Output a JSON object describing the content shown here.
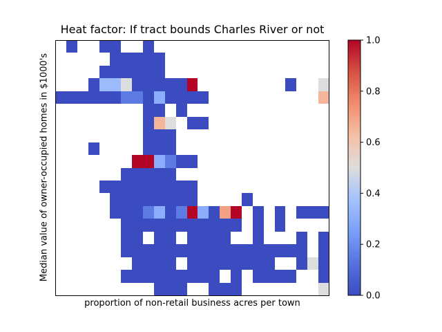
{
  "chart_data": {
    "type": "heatmap",
    "title": "Heat factor: If tract bounds Charles River or not",
    "xlabel": "proportion of non-retail business acres per town",
    "ylabel": "Median value of owner-occupied homes in $1000's",
    "x_ticks": [],
    "y_ticks": [],
    "colormap": "coolwarm",
    "color_low": "#3b4cc0",
    "color_mid": "#dddddd",
    "color_high": "#b40426",
    "clim": [
      0,
      1
    ],
    "colorbar_ticks": [
      "0.0",
      "0.2",
      "0.4",
      "0.6",
      "0.8",
      "1.0"
    ],
    "n_cols": 25,
    "n_rows": 20,
    "row_order": "top-to-bottom",
    "cells": [
      [
        [
          1,
          0
        ],
        [
          4,
          0
        ],
        [
          5,
          0
        ],
        [
          8,
          0
        ]
      ],
      [
        [
          5,
          0
        ],
        [
          6,
          0
        ],
        [
          7,
          0
        ],
        [
          8,
          0
        ],
        [
          9,
          0
        ]
      ],
      [
        [
          4,
          0
        ],
        [
          5,
          0
        ],
        [
          6,
          0
        ],
        [
          7,
          0
        ],
        [
          8,
          0
        ],
        [
          9,
          0
        ]
      ],
      [
        [
          3,
          0
        ],
        [
          4,
          0.35
        ],
        [
          5,
          0.35
        ],
        [
          6,
          0.5
        ],
        [
          7,
          0
        ],
        [
          8,
          0
        ],
        [
          9,
          0
        ],
        [
          10,
          0
        ],
        [
          11,
          0
        ],
        [
          12,
          1
        ],
        [
          21,
          0
        ],
        [
          24,
          0.5
        ]
      ],
      [
        [
          0,
          0
        ],
        [
          1,
          0
        ],
        [
          2,
          0
        ],
        [
          3,
          0
        ],
        [
          4,
          0
        ],
        [
          5,
          0
        ],
        [
          6,
          0.15
        ],
        [
          7,
          0.15
        ],
        [
          8,
          0
        ],
        [
          9,
          0.3
        ],
        [
          10,
          0
        ],
        [
          11,
          0
        ],
        [
          12,
          0
        ],
        [
          13,
          0
        ],
        [
          24,
          0.65
        ]
      ],
      [
        [
          8,
          0
        ],
        [
          9,
          0
        ],
        [
          11,
          0
        ]
      ],
      [
        [
          8,
          0
        ],
        [
          9,
          0.65
        ],
        [
          10,
          0.5
        ],
        [
          12,
          0
        ],
        [
          13,
          0
        ]
      ],
      [
        [
          8,
          0
        ],
        [
          9,
          0
        ],
        [
          10,
          0
        ]
      ],
      [
        [
          3,
          0
        ],
        [
          8,
          0
        ],
        [
          9,
          0
        ],
        [
          10,
          0
        ]
      ],
      [
        [
          7,
          1
        ],
        [
          8,
          1
        ],
        [
          9,
          0.3
        ],
        [
          10,
          0.15
        ],
        [
          11,
          0
        ],
        [
          12,
          0
        ]
      ],
      [
        [
          6,
          0
        ],
        [
          7,
          0
        ],
        [
          8,
          0
        ],
        [
          9,
          0
        ],
        [
          10,
          0
        ]
      ],
      [
        [
          4,
          0
        ],
        [
          5,
          0
        ],
        [
          6,
          0
        ],
        [
          7,
          0
        ],
        [
          8,
          0
        ],
        [
          9,
          0
        ],
        [
          10,
          0
        ],
        [
          11,
          0
        ],
        [
          12,
          0
        ]
      ],
      [
        [
          5,
          0
        ],
        [
          6,
          0
        ],
        [
          7,
          0
        ],
        [
          8,
          0
        ],
        [
          9,
          0
        ],
        [
          10,
          0
        ],
        [
          11,
          0
        ],
        [
          12,
          0
        ],
        [
          17,
          0
        ]
      ],
      [
        [
          5,
          0
        ],
        [
          6,
          0
        ],
        [
          7,
          0
        ],
        [
          8,
          0.15
        ],
        [
          9,
          0.3
        ],
        [
          10,
          0
        ],
        [
          11,
          0.15
        ],
        [
          12,
          1
        ],
        [
          13,
          0.3
        ],
        [
          14,
          0
        ],
        [
          15,
          0.7
        ],
        [
          16,
          1
        ],
        [
          18,
          0
        ],
        [
          20,
          0
        ],
        [
          22,
          0
        ],
        [
          23,
          0
        ],
        [
          24,
          0
        ]
      ],
      [
        [
          6,
          0
        ],
        [
          7,
          0
        ],
        [
          8,
          0
        ],
        [
          9,
          0
        ],
        [
          10,
          0
        ],
        [
          11,
          0
        ],
        [
          12,
          0
        ],
        [
          13,
          0
        ],
        [
          14,
          0
        ],
        [
          15,
          0
        ],
        [
          16,
          0
        ],
        [
          18,
          0
        ],
        [
          20,
          0
        ]
      ],
      [
        [
          6,
          0
        ],
        [
          7,
          0
        ],
        [
          9,
          0
        ],
        [
          10,
          0
        ],
        [
          12,
          0
        ],
        [
          13,
          0
        ],
        [
          14,
          0
        ],
        [
          15,
          0
        ],
        [
          18,
          0
        ],
        [
          22,
          0
        ],
        [
          24,
          0
        ]
      ],
      [
        [
          6,
          0
        ],
        [
          7,
          0
        ],
        [
          8,
          0
        ],
        [
          9,
          0
        ],
        [
          10,
          0
        ],
        [
          11,
          0
        ],
        [
          12,
          0
        ],
        [
          13,
          0
        ],
        [
          14,
          0
        ],
        [
          15,
          0
        ],
        [
          16,
          0
        ],
        [
          17,
          0
        ],
        [
          18,
          0
        ],
        [
          19,
          0
        ],
        [
          20,
          0
        ],
        [
          21,
          0
        ],
        [
          22,
          0
        ],
        [
          24,
          0
        ]
      ],
      [
        [
          7,
          0
        ],
        [
          8,
          0
        ],
        [
          9,
          0
        ],
        [
          10,
          0
        ],
        [
          12,
          0
        ],
        [
          13,
          0
        ],
        [
          14,
          0
        ],
        [
          15,
          0
        ],
        [
          16,
          0
        ],
        [
          17,
          0
        ],
        [
          18,
          0
        ],
        [
          19,
          0
        ],
        [
          22,
          0
        ],
        [
          23,
          0.5
        ],
        [
          24,
          0
        ]
      ],
      [
        [
          6,
          0
        ],
        [
          7,
          0
        ],
        [
          8,
          0
        ],
        [
          9,
          0
        ],
        [
          10,
          0
        ],
        [
          11,
          0
        ],
        [
          12,
          0
        ],
        [
          13,
          0
        ],
        [
          14,
          0
        ],
        [
          16,
          0
        ],
        [
          18,
          0
        ],
        [
          19,
          0
        ],
        [
          20,
          0
        ],
        [
          21,
          0
        ],
        [
          24,
          0
        ]
      ],
      [
        [
          9,
          0
        ],
        [
          10,
          0
        ],
        [
          11,
          0
        ],
        [
          14,
          0
        ],
        [
          15,
          0
        ],
        [
          16,
          0
        ],
        [
          24,
          0.5
        ]
      ]
    ]
  }
}
